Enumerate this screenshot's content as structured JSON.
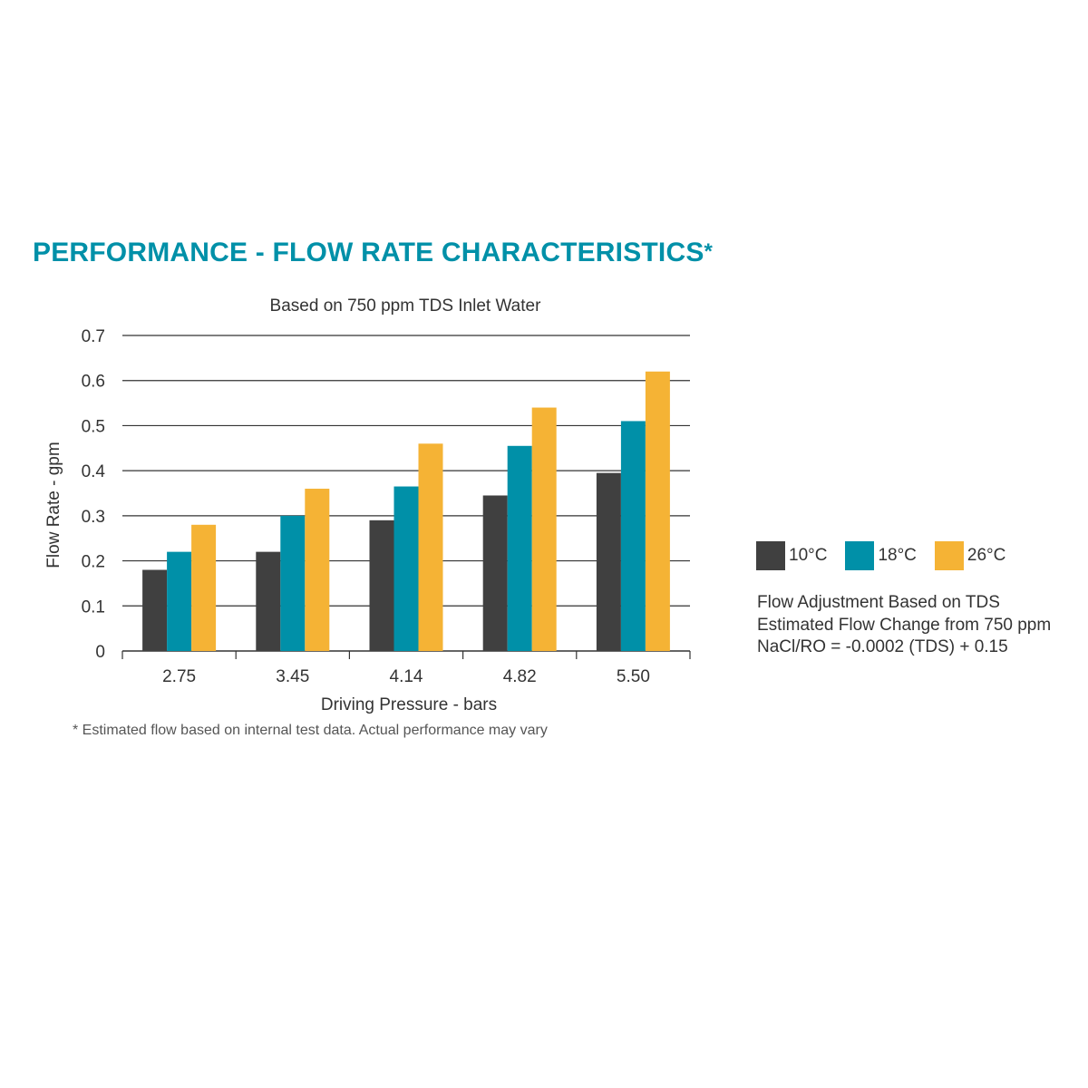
{
  "title": {
    "text": "PERFORMANCE - FLOW RATE CHARACTERISTICS",
    "mark": "*"
  },
  "colors": {
    "title": "#0090a8",
    "text": "#333333",
    "grid": "#333333"
  },
  "chart_data": {
    "type": "bar",
    "title": "Based on 750 ppm TDS Inlet Water",
    "xlabel": "Driving Pressure - bars",
    "ylabel": "Flow Rate - gpm",
    "categories": [
      "2.75",
      "3.45",
      "4.14",
      "4.82",
      "5.50"
    ],
    "yticks": [
      "0",
      "0.1",
      "0.2",
      "0.3",
      "0.4",
      "0.5",
      "0.6",
      "0.7"
    ],
    "ylim": [
      0,
      0.7
    ],
    "grid": true,
    "legend_position": "right",
    "series": [
      {
        "name": "10°C",
        "color": "#404040",
        "values": [
          0.18,
          0.22,
          0.29,
          0.345,
          0.395
        ]
      },
      {
        "name": "18°C",
        "color": "#0090a8",
        "values": [
          0.22,
          0.3,
          0.365,
          0.455,
          0.51
        ]
      },
      {
        "name": "26°C",
        "color": "#f5b335",
        "values": [
          0.28,
          0.36,
          0.46,
          0.54,
          0.62
        ]
      }
    ]
  },
  "adjustment_note": {
    "line1": "Flow Adjustment Based on TDS",
    "line2": "Estimated Flow Change from 750 ppm",
    "line3": "NaCl/RO = -0.0002 (TDS) + 0.15"
  },
  "footnote": {
    "mark": "*",
    "text": " Estimated flow based on internal test data. Actual performance may vary"
  }
}
